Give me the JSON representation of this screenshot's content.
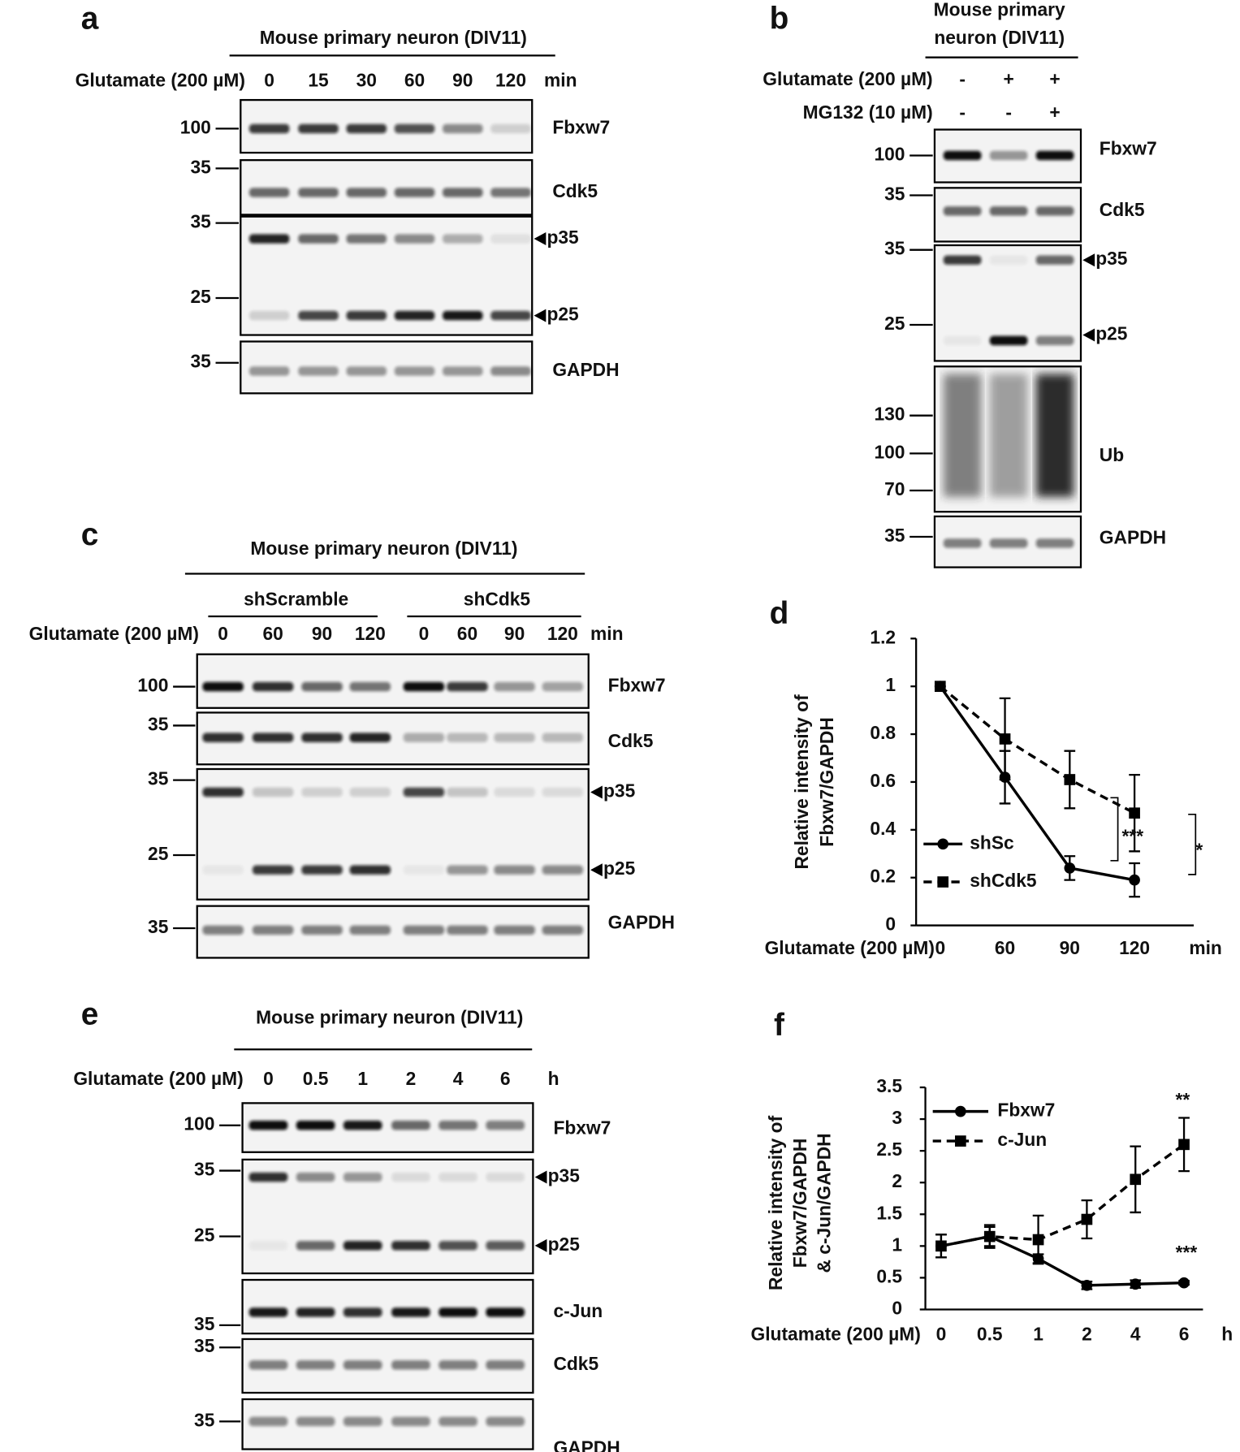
{
  "panels": {
    "a": {
      "letter": "a",
      "header": [
        "Mouse primary neuron (DIV11)"
      ],
      "rows": [
        {
          "label": "Glutamate (200 µM)",
          "lanes": [
            "0",
            "15",
            "30",
            "60",
            "90",
            "120"
          ]
        }
      ],
      "unit": "min",
      "blots": [
        {
          "labels": [
            "Fbxw7"
          ],
          "markers": [
            "100"
          ]
        },
        {
          "labels": [
            "Cdk5"
          ],
          "markers": [
            "35"
          ]
        },
        {
          "labels": [
            "p35",
            "p25"
          ],
          "markers": [
            "35",
            "25"
          ]
        },
        {
          "labels": [
            "GAPDH"
          ],
          "markers": [
            "35"
          ]
        }
      ]
    },
    "b": {
      "letter": "b",
      "header": [
        "Mouse primary",
        "neuron (DIV11)"
      ],
      "rows": [
        {
          "label": "Glutamate (200 µM)",
          "lanes": [
            "-",
            "+",
            "+"
          ]
        },
        {
          "label": "MG132 (10 µM)",
          "lanes": [
            "-",
            "-",
            "+"
          ]
        }
      ],
      "blots": [
        {
          "labels": [
            "Fbxw7"
          ],
          "markers": [
            "100"
          ]
        },
        {
          "labels": [
            "Cdk5"
          ],
          "markers": [
            "35"
          ]
        },
        {
          "labels": [
            "p35",
            "p25"
          ],
          "markers": [
            "35",
            "25"
          ]
        },
        {
          "labels": [
            "Ub"
          ],
          "markers": [
            "130",
            "100",
            "70"
          ]
        },
        {
          "labels": [
            "GAPDH"
          ],
          "markers": [
            "35"
          ]
        }
      ]
    },
    "c": {
      "letter": "c",
      "header": [
        "Mouse primary  neuron (DIV11)"
      ],
      "groups": [
        "shScramble",
        "shCdk5"
      ],
      "rows": [
        {
          "label": "Glutamate (200 µM)",
          "lanes": [
            "0",
            "60",
            "90",
            "120",
            "0",
            "60",
            "90",
            "120"
          ]
        }
      ],
      "unit": "min",
      "blots": [
        {
          "labels": [
            "Fbxw7"
          ],
          "markers": [
            "100"
          ]
        },
        {
          "labels": [
            "Cdk5"
          ],
          "markers": [
            "35"
          ]
        },
        {
          "labels": [
            "p35",
            "p25"
          ],
          "markers": [
            "35",
            "25"
          ]
        },
        {
          "labels": [
            "GAPDH"
          ],
          "markers": [
            "35"
          ]
        }
      ]
    },
    "e": {
      "letter": "e",
      "header": [
        "Mouse primary neuron (DIV11)"
      ],
      "rows": [
        {
          "label": "Glutamate (200 µM)",
          "lanes": [
            "0",
            "0.5",
            "1",
            "2",
            "4",
            "6"
          ]
        }
      ],
      "unit": "h",
      "blots": [
        {
          "labels": [
            "Fbxw7"
          ],
          "markers": [
            "100"
          ]
        },
        {
          "labels": [
            "p35",
            "p25"
          ],
          "markers": [
            "35",
            "25"
          ]
        },
        {
          "labels": [
            "c-Jun"
          ],
          "markers": [
            "35"
          ]
        },
        {
          "labels": [
            "Cdk5"
          ],
          "markers": [
            "35"
          ]
        },
        {
          "labels": [
            "GAPDH"
          ],
          "markers": [
            "35"
          ]
        }
      ]
    }
  },
  "chart_data": [
    {
      "type": "line",
      "letter": "d",
      "ylabel": [
        "Relative intensity of",
        "Fbxw7/GAPDH"
      ],
      "xlabel": "Glutamate (200 µM)",
      "unit": "min",
      "categories": [
        "0",
        "60",
        "90",
        "120"
      ],
      "ylim": [
        0,
        1.2
      ],
      "yticks": [
        0,
        0.2,
        0.4,
        0.6,
        0.8,
        1,
        1.2
      ],
      "series": [
        {
          "name": "shSc",
          "color": "#000000",
          "marker": "circle",
          "dash": false,
          "values": [
            1,
            0.62,
            0.24,
            0.19
          ],
          "errors": [
            0,
            0.11,
            0.05,
            0.07
          ]
        },
        {
          "name": "shCdk5",
          "color": "#000000",
          "marker": "square",
          "dash": true,
          "values": [
            1,
            0.78,
            0.61,
            0.47
          ],
          "errors": [
            0,
            0.17,
            0.12,
            0.16
          ]
        }
      ],
      "annotations": [
        "***",
        "*"
      ]
    },
    {
      "type": "line",
      "letter": "f",
      "ylabel": [
        "Relative intensity of",
        "Fbxw7/GAPDH",
        "& c-Jun/GAPDH"
      ],
      "xlabel": "Glutamate (200 µM)",
      "unit": "h",
      "categories": [
        "0",
        "0.5",
        "1",
        "2",
        "4",
        "6"
      ],
      "ylim": [
        0,
        3.5
      ],
      "yticks": [
        0,
        0.5,
        1,
        1.5,
        2,
        2.5,
        3,
        3.5
      ],
      "series": [
        {
          "name": "Fbxw7",
          "color": "#000000",
          "marker": "circle",
          "dash": false,
          "values": [
            1,
            1.15,
            0.8,
            0.38,
            0.4,
            0.42
          ],
          "errors": [
            0.18,
            0.15,
            0.07,
            0.06,
            0.06,
            0.03
          ]
        },
        {
          "name": "c-Jun",
          "color": "#000000",
          "marker": "square",
          "dash": true,
          "values": [
            1,
            1.15,
            1.1,
            1.42,
            2.05,
            2.6
          ],
          "errors": [
            0.18,
            0.18,
            0.38,
            0.3,
            0.52,
            0.42
          ]
        }
      ],
      "annotations": [
        "**",
        "***"
      ]
    }
  ]
}
